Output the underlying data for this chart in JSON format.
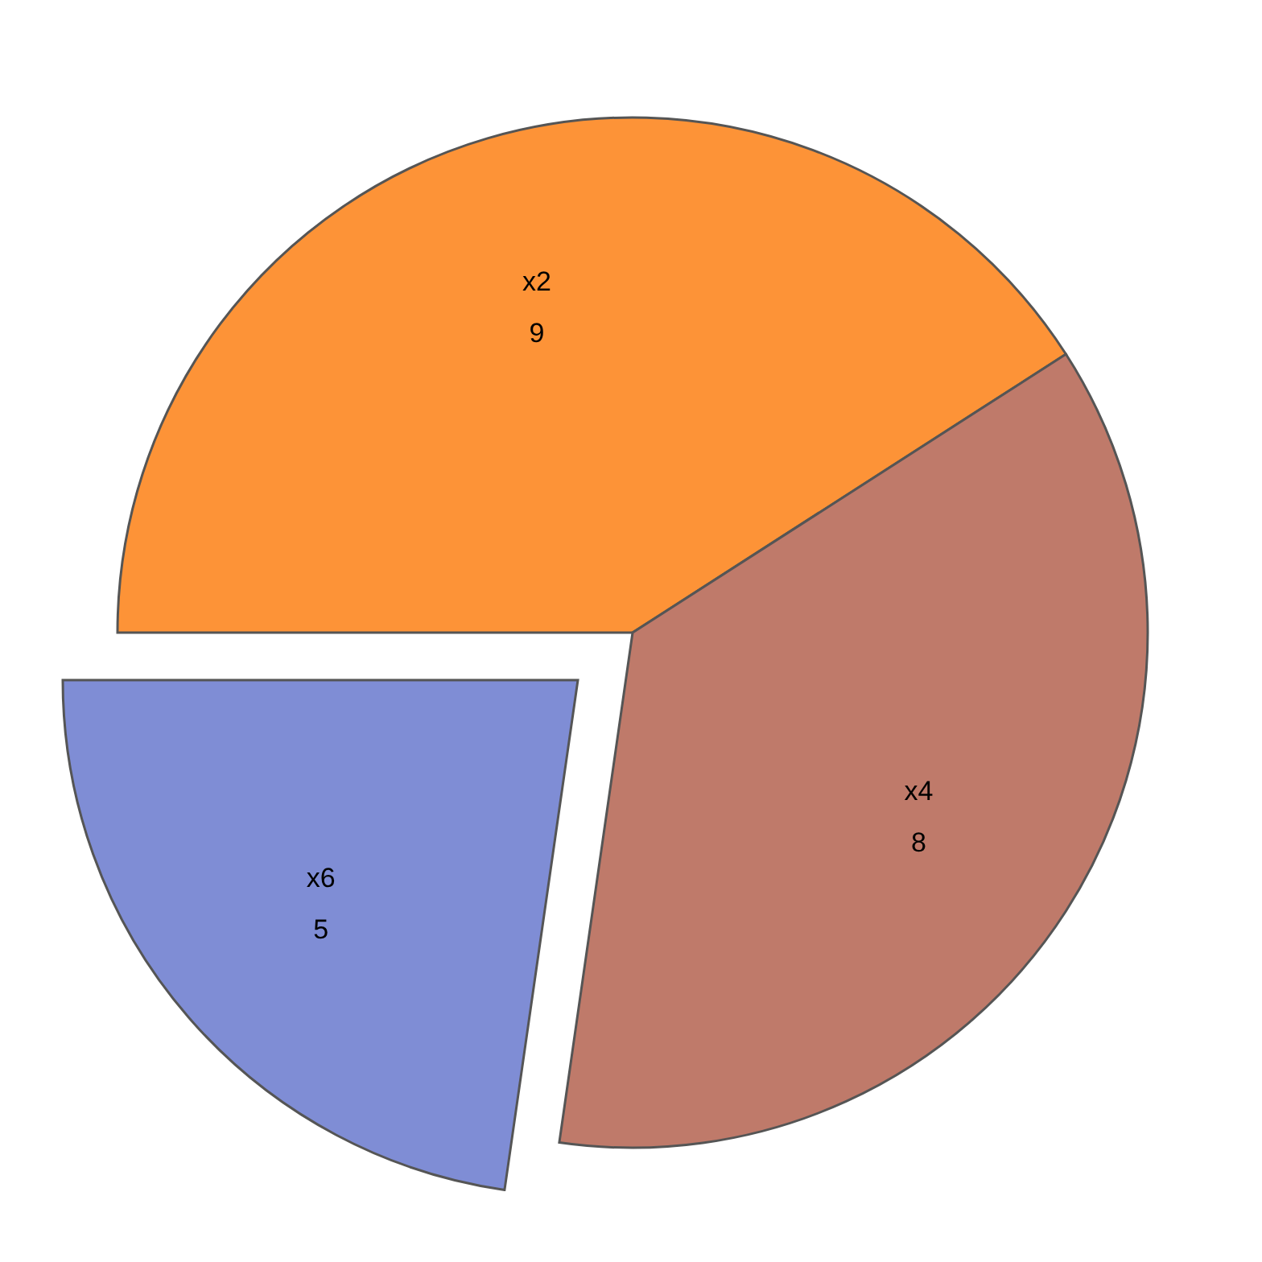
{
  "chart_data": {
    "type": "pie",
    "categories": [
      "x2",
      "x4",
      "x6"
    ],
    "values": [
      9,
      8,
      5
    ],
    "colors": [
      "#fd9337",
      "#bf7a6a",
      "#7f8dd5"
    ],
    "data_labels": true
  }
}
